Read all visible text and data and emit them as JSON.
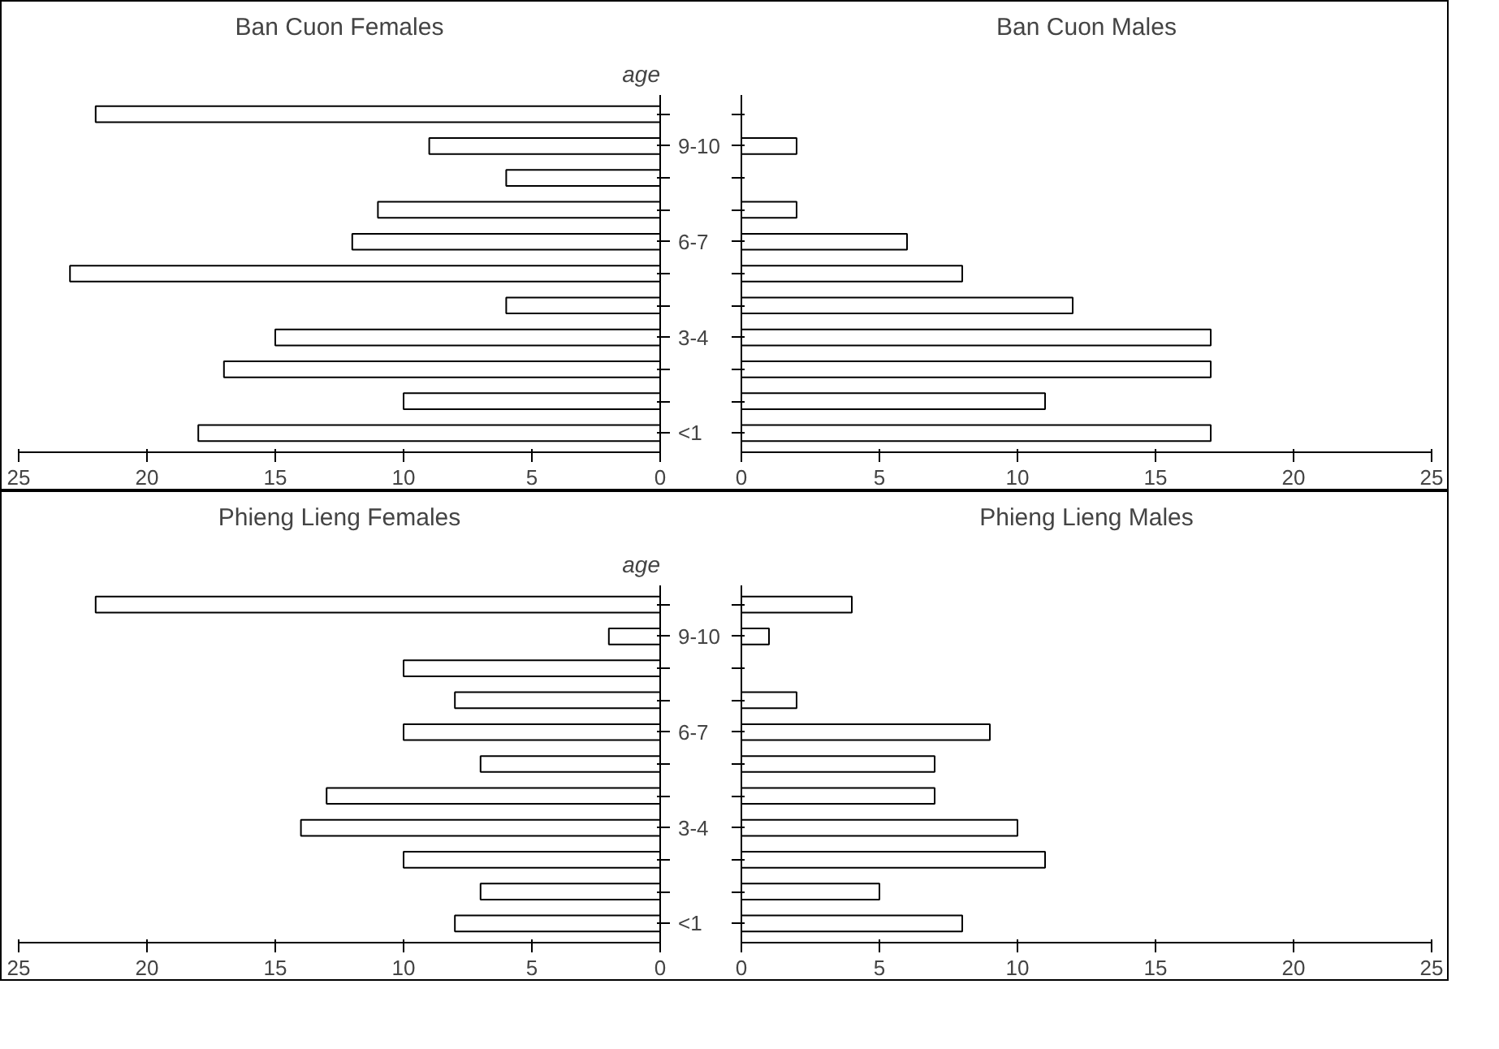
{
  "chart_data": [
    {
      "type": "bar",
      "orientation": "horizontal",
      "title": "Ban Cuon Females",
      "ylabel": "age",
      "categories": [
        null,
        "9-10",
        null,
        null,
        "6-7",
        null,
        null,
        "3-4",
        null,
        null,
        "<1"
      ],
      "values": [
        22,
        9,
        6,
        11,
        12,
        23,
        6,
        15,
        17,
        10,
        18
      ],
      "color": "#ffffff",
      "xlim": [
        25,
        0
      ],
      "xticks": [
        25,
        20,
        15,
        10,
        5,
        0
      ],
      "grid": false
    },
    {
      "type": "bar",
      "orientation": "horizontal",
      "title": "Ban Cuon Males",
      "values": [
        null,
        2,
        null,
        2,
        6,
        8,
        12,
        17,
        17,
        11,
        17
      ],
      "color": "#ffffff",
      "xlim": [
        0,
        25
      ],
      "xticks": [
        0,
        5,
        10,
        15,
        20,
        25
      ],
      "grid": false,
      "tick_labels": "x"
    },
    {
      "type": "bar",
      "orientation": "horizontal",
      "title": "Phieng Lieng Females",
      "ylabel": "age",
      "categories": [
        null,
        "9-10",
        null,
        null,
        "6-7",
        null,
        null,
        "3-4",
        null,
        null,
        "<1"
      ],
      "values": [
        22,
        2,
        10,
        8,
        10,
        7,
        13,
        14,
        10,
        7,
        8
      ],
      "color": "#ffffff",
      "xlim": [
        25,
        0
      ],
      "xticks": [
        25,
        20,
        15,
        10,
        5,
        0
      ],
      "grid": false
    },
    {
      "type": "bar",
      "orientation": "horizontal",
      "title": "Phieng Lieng Males",
      "values": [
        4,
        1,
        null,
        2,
        9,
        7,
        7,
        10,
        11,
        5,
        8
      ],
      "color": "#ffffff",
      "xlim": [
        0,
        25
      ],
      "xticks": [
        0,
        5,
        10,
        15,
        20,
        25
      ],
      "grid": false,
      "tick_labels": "x"
    }
  ]
}
